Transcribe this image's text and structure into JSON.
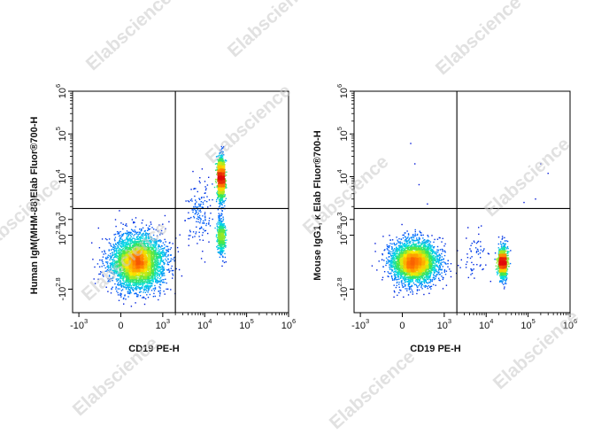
{
  "watermark": "Elabscience",
  "chart_data": [
    {
      "type": "scatter",
      "xlabel": "CD19 PE-H",
      "ylabel": "Human IgM(MHM-88)Elab Fluor®700-H",
      "x_ticks": [
        {
          "base": "-10",
          "exp": "3",
          "v": -1000
        },
        {
          "base": "0",
          "exp": "",
          "v": 0
        },
        {
          "base": "10",
          "exp": "3",
          "v": 1000
        },
        {
          "base": "10",
          "exp": "4",
          "v": 10000
        },
        {
          "base": "10",
          "exp": "5",
          "v": 100000
        },
        {
          "base": "10",
          "exp": "6",
          "v": 1000000
        }
      ],
      "y_ticks": [
        {
          "base": "-10",
          "exp": "2.8",
          "v": -631
        },
        {
          "base": "10",
          "exp": "2.8",
          "v": 631
        },
        {
          "base": "10",
          "exp": "3",
          "v": 1000
        },
        {
          "base": "10",
          "exp": "4",
          "v": 10000
        },
        {
          "base": "10",
          "exp": "5",
          "v": 100000
        },
        {
          "base": "10",
          "exp": "6",
          "v": 1000000
        }
      ],
      "quadrant_gate": {
        "x": 2000,
        "y": 1800
      },
      "populations": [
        {
          "cx": 400,
          "cy": 0,
          "sx": 0.9,
          "sy": 0.9,
          "n": 4200
        },
        {
          "cx": 25000,
          "cy": 9000,
          "sx": 0.12,
          "sy": 0.75,
          "n": 1300
        },
        {
          "cx": 25000,
          "cy": 600,
          "sx": 0.14,
          "sy": 0.6,
          "n": 500
        },
        {
          "cx": 8000,
          "cy": 1500,
          "sx": 0.5,
          "sy": 1.2,
          "n": 150
        }
      ],
      "seed": 11
    },
    {
      "type": "scatter",
      "xlabel": "CD19 PE-H",
      "ylabel": "Mouse IgG1, κ Elab Fluor®700-H",
      "x_ticks": [
        {
          "base": "-10",
          "exp": "3",
          "v": -1000
        },
        {
          "base": "0",
          "exp": "",
          "v": 0
        },
        {
          "base": "10",
          "exp": "3",
          "v": 1000
        },
        {
          "base": "10",
          "exp": "4",
          "v": 10000
        },
        {
          "base": "10",
          "exp": "5",
          "v": 100000
        },
        {
          "base": "10",
          "exp": "6",
          "v": 1000000
        }
      ],
      "y_ticks": [
        {
          "base": "-10",
          "exp": "2.8",
          "v": -631
        },
        {
          "base": "10",
          "exp": "2.8",
          "v": 631
        },
        {
          "base": "10",
          "exp": "3",
          "v": 1000
        },
        {
          "base": "10",
          "exp": "4",
          "v": 10000
        },
        {
          "base": "10",
          "exp": "5",
          "v": 100000
        },
        {
          "base": "10",
          "exp": "6",
          "v": 1000000
        }
      ],
      "quadrant_gate": {
        "x": 2000,
        "y": 1800
      },
      "populations": [
        {
          "cx": 300,
          "cy": 0,
          "sx": 0.8,
          "sy": 0.7,
          "n": 3600
        },
        {
          "cx": 25000,
          "cy": 0,
          "sx": 0.15,
          "sy": 0.55,
          "n": 1100
        },
        {
          "cx": 6000,
          "cy": 100,
          "sx": 0.5,
          "sy": 0.8,
          "n": 60
        }
      ],
      "outliers": [
        {
          "x": 200,
          "y": 60000
        },
        {
          "x": 300,
          "y": 20000
        },
        {
          "x": 400,
          "y": 6500
        },
        {
          "x": 600,
          "y": 2300
        },
        {
          "x": 200000,
          "y": 20000
        },
        {
          "x": 150000,
          "y": 3000
        },
        {
          "x": 80000,
          "y": 2500
        },
        {
          "x": 300000,
          "y": 12000
        }
      ],
      "seed": 29
    }
  ]
}
